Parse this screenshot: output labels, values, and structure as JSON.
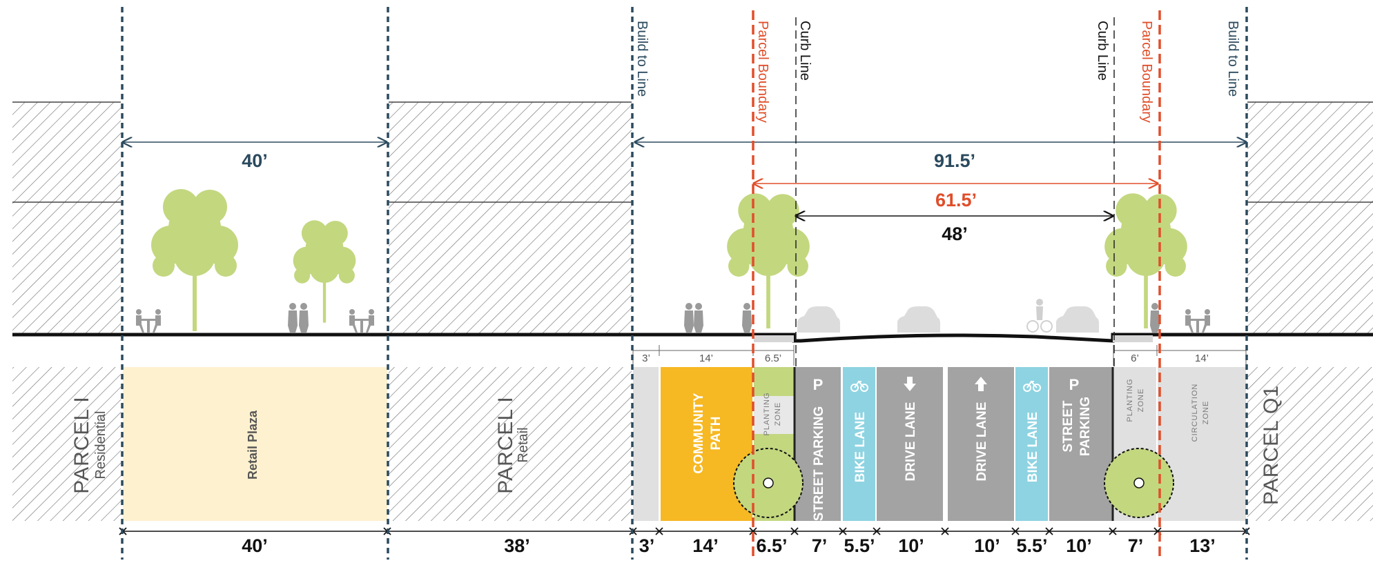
{
  "colors": {
    "build_to_line": "#2b4a5e",
    "parcel_boundary": "#e04e2a",
    "curb_line": "#222222",
    "retail_plaza": "#fdf1cf",
    "community_path": "#f6b823",
    "bike_lane": "#8ed3e1",
    "street_gray": "#a3a3a3",
    "light_zone": "#e0e0e0",
    "tree": "#c3d77f"
  },
  "vertical_lines": {
    "build_to_line_left": "Build to Line",
    "parcel_boundary_left": "Parcel Boundary",
    "curb_line_left": "Curb Line",
    "curb_line_right": "Curb Line",
    "parcel_boundary_right": "Parcel Boundary",
    "build_to_line_right": "Build to Line"
  },
  "top_dimensions": {
    "plaza_width": "40’",
    "row_width": "91.5’",
    "parcel_width": "61.5’",
    "curb_width": "48’"
  },
  "parcels": {
    "left_title": "PARCEL I",
    "left_sub": "Residential",
    "middle_title": "PARCEL I",
    "middle_sub": "Retail",
    "right_title": "PARCEL Q1"
  },
  "zones": {
    "retail_plaza": "Retail Plaza",
    "community_path_line1": "COMMUNITY",
    "community_path_line2": "PATH",
    "planting_zone_left_line1": "PLANTING",
    "planting_zone_left_line2": "ZONE",
    "street_parking_left": "STREET PARKING",
    "bike_lane_left": "BIKE LANE",
    "drive_lane_left": "DRIVE LANE",
    "drive_lane_right": "DRIVE LANE",
    "bike_lane_right": "BIKE LANE",
    "street_parking_right_line1": "STREET",
    "street_parking_right_line2": "PARKING",
    "planting_zone_right_line1": "PLANTING",
    "planting_zone_right_line2": "ZONE",
    "circulation_zone_line1": "CIRCULATION",
    "circulation_zone_line2": "ZONE",
    "parking_symbol": "P"
  },
  "small_dimensions": {
    "d1": "3’",
    "d2": "14’",
    "d3": "6.5’",
    "d4": "6’",
    "d5": "14’"
  },
  "bottom_dimensions": {
    "b1": "40’",
    "b2": "38’",
    "b3": "3’",
    "b4": "14’",
    "b5": "6.5’",
    "b6": "7’",
    "b7": "5.5’",
    "b8": "10’",
    "b9": "10’",
    "b10": "5.5’",
    "b11": "10’",
    "b12": "7’",
    "b13": "13’"
  },
  "icons": [
    "tree-icon",
    "tree-plan-icon",
    "people-icon",
    "cafe-table-icon",
    "car-icon",
    "cyclist-icon",
    "arrow-down-icon",
    "arrow-up-icon",
    "bike-icon",
    "parking-icon"
  ]
}
